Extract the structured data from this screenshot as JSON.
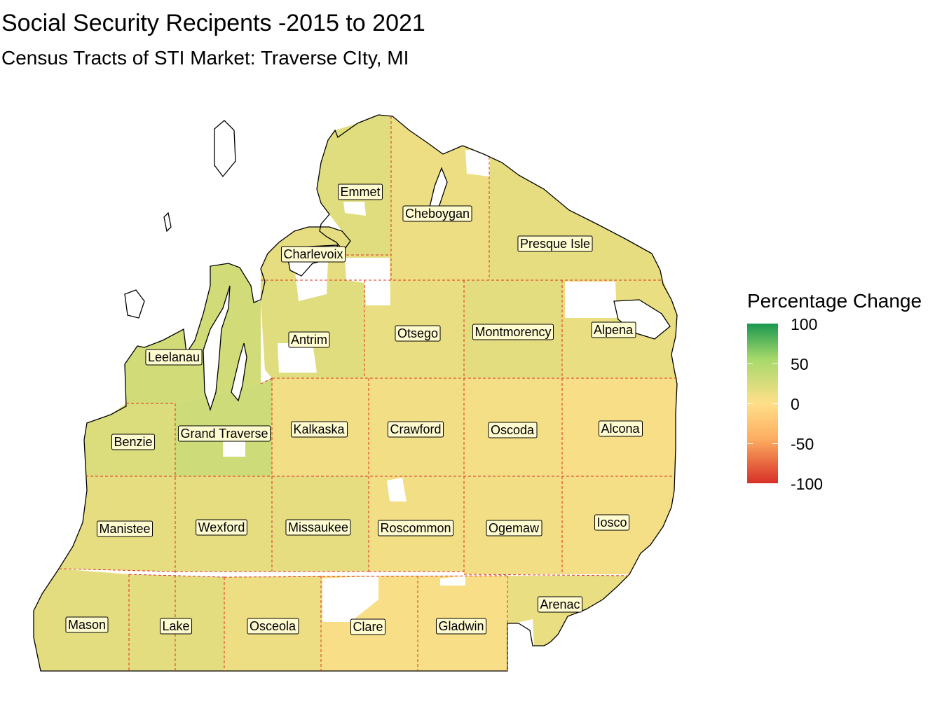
{
  "title": "Social Security Recipents -2015 to 2021",
  "subtitle": "Census Tracts of STI Market: Traverse CIty, MI",
  "legend": {
    "title": "Percentage Change",
    "ticks": [
      "100",
      "50",
      "0",
      "-50",
      "-100"
    ],
    "scale_min": -100,
    "scale_max": 100,
    "colors": {
      "high": "#1a9850",
      "mid_high": "#a6d96a",
      "mid": "#ffdf8a",
      "mid_low": "#fdae61",
      "low": "#d73027"
    }
  },
  "colors": {
    "county_border": "#e03020",
    "county_fill_default": "#f2d88a",
    "label_box": "#fffbd0"
  },
  "counties": [
    {
      "id": "emmet",
      "name": "Emmet",
      "value": 18
    },
    {
      "id": "cheboygan",
      "name": "Cheboygan",
      "value": 10
    },
    {
      "id": "presque-isle",
      "name": "Presque Isle",
      "value": 14
    },
    {
      "id": "charlevoix",
      "name": "Charlevoix",
      "value": 14
    },
    {
      "id": "antrim",
      "name": "Antrim",
      "value": 18
    },
    {
      "id": "otsego",
      "name": "Otsego",
      "value": 12
    },
    {
      "id": "montmorency",
      "name": "Montmorency",
      "value": 16
    },
    {
      "id": "alpena",
      "name": "Alpena",
      "value": 12
    },
    {
      "id": "leelanau",
      "name": "Leelanau",
      "value": 26
    },
    {
      "id": "benzie",
      "name": "Benzie",
      "value": 20
    },
    {
      "id": "grand-traverse",
      "name": "Grand Traverse",
      "value": 28
    },
    {
      "id": "kalkaska",
      "name": "Kalkaska",
      "value": 8
    },
    {
      "id": "crawford",
      "name": "Crawford",
      "value": 8
    },
    {
      "id": "oscoda",
      "name": "Oscoda",
      "value": 6
    },
    {
      "id": "alcona",
      "name": "Alcona",
      "value": 4
    },
    {
      "id": "manistee",
      "name": "Manistee",
      "value": 14
    },
    {
      "id": "wexford",
      "name": "Wexford",
      "value": 14
    },
    {
      "id": "missaukee",
      "name": "Missaukee",
      "value": 14
    },
    {
      "id": "roscommon",
      "name": "Roscommon",
      "value": 8
    },
    {
      "id": "ogemaw",
      "name": "Ogemaw",
      "value": 8
    },
    {
      "id": "iosco",
      "name": "Iosco",
      "value": 6
    },
    {
      "id": "arenac",
      "name": "Arenac",
      "value": 12
    },
    {
      "id": "mason",
      "name": "Mason",
      "value": 16
    },
    {
      "id": "lake",
      "name": "Lake",
      "value": 16
    },
    {
      "id": "osceola",
      "name": "Osceola",
      "value": 10
    },
    {
      "id": "clare",
      "name": "Clare",
      "value": 4
    },
    {
      "id": "gladwin",
      "name": "Gladwin",
      "value": 4
    }
  ]
}
